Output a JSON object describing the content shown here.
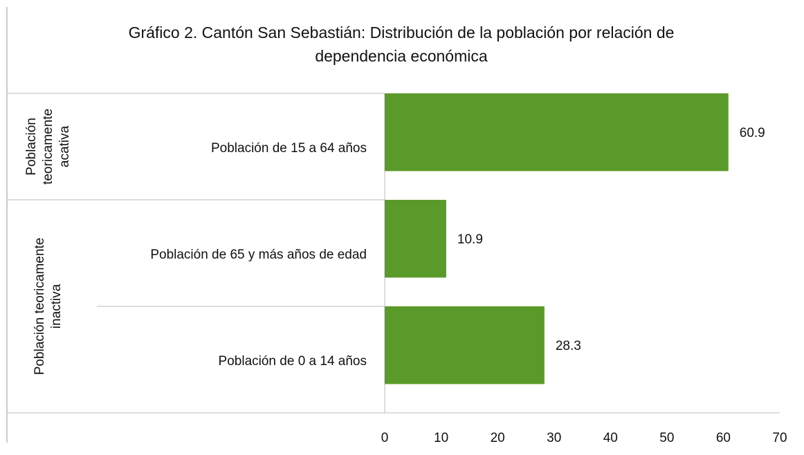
{
  "chart_data": {
    "type": "hbar",
    "title": "Gráfico 2. Cantón San Sebastián: Distribución de la población por relación  de dependencia  económica",
    "categories": [
      "Población de 15 a 64 años",
      "Población de 65 y más años de edad",
      "Población de 0 a 14 años"
    ],
    "values": [
      60.9,
      10.9,
      28.3
    ],
    "color": "#5a9a2a",
    "groups": [
      {
        "label": [
          "Población",
          "teoricamente",
          "acativa"
        ],
        "size": 1
      },
      {
        "label": [
          "Población teoricamente",
          "inactiva"
        ],
        "size": 2
      }
    ],
    "xlim": [
      0,
      70
    ],
    "xticks": [
      0,
      10,
      20,
      30,
      40,
      50,
      60,
      70
    ],
    "grid": false
  }
}
